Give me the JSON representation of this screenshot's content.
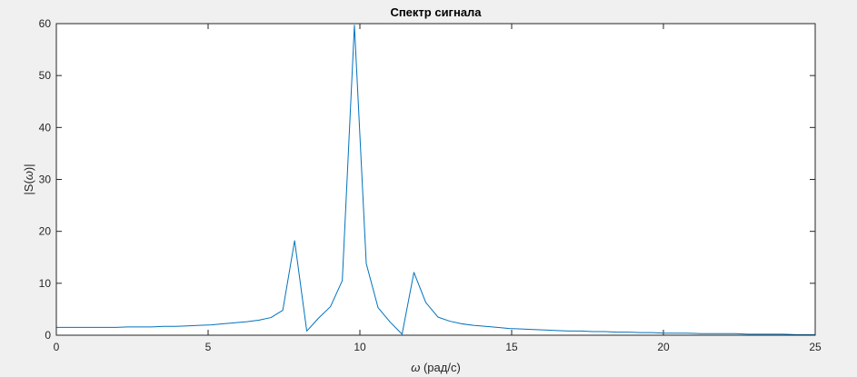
{
  "chart_data": {
    "type": "line",
    "title": "Спектр сигнала",
    "xlabel": {
      "symbol": "ω",
      "text": " (рад/с)"
    },
    "ylabel": {
      "prefix": "|S(",
      "symbol": "ω",
      "suffix": ")|"
    },
    "xlim": [
      0,
      25
    ],
    "ylim": [
      0,
      60
    ],
    "x_ticks": [
      "0",
      "5",
      "10",
      "15",
      "20",
      "25"
    ],
    "y_ticks": [
      "0",
      "10",
      "20",
      "30",
      "40",
      "50",
      "60"
    ],
    "grid": false,
    "line_color": "#0072bd",
    "axes_background": "#ffffff",
    "figure_background": "#f0f0f0",
    "series": [
      {
        "x": [
          0,
          0.39,
          0.79,
          1.18,
          1.57,
          1.96,
          2.36,
          2.75,
          3.14,
          3.53,
          3.93,
          4.32,
          4.71,
          5.11,
          5.5,
          5.89,
          6.28,
          6.68,
          7.07,
          7.46,
          7.85,
          8.25,
          8.64,
          9.03,
          9.42,
          9.82,
          10.21,
          10.6,
          11.0,
          11.39,
          11.78,
          12.17,
          12.57,
          12.96,
          13.35,
          13.74,
          14.14,
          14.53,
          14.92,
          15.32,
          15.71,
          16.1,
          16.49,
          16.89,
          17.28,
          17.67,
          18.06,
          18.46,
          18.85,
          19.24,
          19.63,
          20.03,
          20.42,
          20.81,
          21.21,
          21.6,
          21.99,
          22.38,
          22.78,
          23.17,
          23.56,
          23.95,
          24.35,
          24.74,
          25.0
        ],
        "y": [
          1.5,
          1.5,
          1.5,
          1.5,
          1.5,
          1.5,
          1.6,
          1.6,
          1.6,
          1.7,
          1.7,
          1.8,
          1.9,
          2.0,
          2.2,
          2.4,
          2.6,
          2.9,
          3.4,
          4.8,
          18.2,
          0.8,
          3.3,
          5.5,
          10.5,
          59.7,
          13.8,
          5.3,
          2.5,
          0.2,
          12.1,
          6.3,
          3.5,
          2.7,
          2.2,
          1.9,
          1.7,
          1.5,
          1.3,
          1.2,
          1.1,
          1.0,
          0.9,
          0.8,
          0.8,
          0.7,
          0.7,
          0.6,
          0.6,
          0.5,
          0.5,
          0.4,
          0.4,
          0.4,
          0.3,
          0.3,
          0.3,
          0.3,
          0.2,
          0.2,
          0.2,
          0.2,
          0.1,
          0.1,
          0.1
        ]
      }
    ]
  }
}
